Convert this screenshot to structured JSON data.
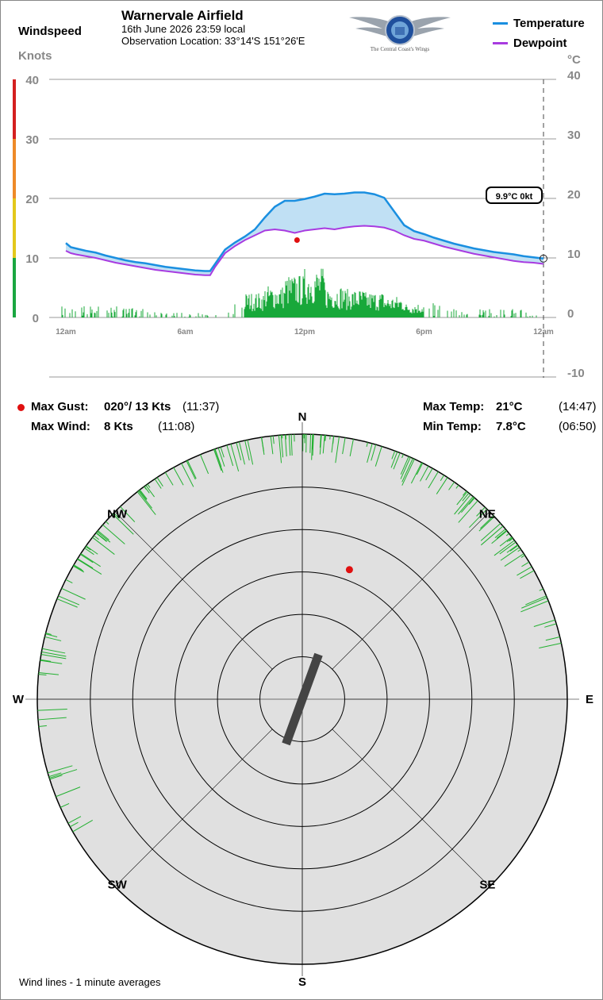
{
  "header": {
    "left_title": "Windspeed",
    "left_units": "Knots",
    "station_name": "Warnervale Airfield",
    "date_time": "16th June 2026  23:59 local",
    "location": "Observation Location: 33°14'S 151°26'E",
    "logo_text": "The Central Coast's Wings",
    "logo_ring_text": "CENTRAL COAST AERO CLUB",
    "legend": [
      {
        "label": "Temperature",
        "color": "#1a8fe0"
      },
      {
        "label": "Dewpoint",
        "color": "#a83be0"
      }
    ],
    "right_units": "°C"
  },
  "chart_data": [
    {
      "type": "line",
      "x_unit": "time of day",
      "x_ticks": [
        "12am",
        "6am",
        "12pm",
        "6pm",
        "12am"
      ],
      "x_range_hours": [
        0,
        24
      ],
      "left_axis": {
        "label": "Knots",
        "ticks": [
          0,
          10,
          20,
          30,
          40
        ],
        "range": [
          0,
          40
        ]
      },
      "right_axis": {
        "label": "°C",
        "ticks": [
          -10,
          0,
          10,
          20,
          30,
          40
        ],
        "range": [
          -10,
          40
        ]
      },
      "grid": true,
      "series": [
        {
          "name": "Temperature",
          "color": "#1a8fe0",
          "x_hours": [
            0,
            0.25,
            0.5,
            1,
            1.5,
            2,
            2.5,
            3,
            3.5,
            4,
            4.5,
            5,
            5.5,
            6,
            6.5,
            7,
            7.25,
            7.5,
            8,
            8.5,
            9,
            9.5,
            10,
            10.5,
            11,
            11.5,
            12,
            12.5,
            13,
            13.5,
            14,
            14.5,
            15,
            15.5,
            16,
            16.5,
            17,
            17.5,
            18,
            18.5,
            19,
            19.5,
            20,
            20.5,
            21,
            21.5,
            22,
            22.5,
            23,
            23.5,
            24
          ],
          "values": [
            12.5,
            11.8,
            11.6,
            11.2,
            10.9,
            10.4,
            10.0,
            9.6,
            9.3,
            9.1,
            8.8,
            8.5,
            8.3,
            8.1,
            7.9,
            7.8,
            7.8,
            9.0,
            11.4,
            12.6,
            13.6,
            14.8,
            16.8,
            18.6,
            19.6,
            19.6,
            19.9,
            20.3,
            20.8,
            20.7,
            20.8,
            21.0,
            21.0,
            20.7,
            20.1,
            17.8,
            15.5,
            14.5,
            14.0,
            13.4,
            12.9,
            12.4,
            12.0,
            11.6,
            11.3,
            11.0,
            10.8,
            10.6,
            10.3,
            10.1,
            9.9
          ]
        },
        {
          "name": "Dewpoint",
          "color": "#a83be0",
          "x_hours": [
            0,
            0.25,
            0.5,
            1,
            1.5,
            2,
            2.5,
            3,
            3.5,
            4,
            4.5,
            5,
            5.5,
            6,
            6.5,
            7,
            7.25,
            7.5,
            8,
            8.5,
            9,
            9.5,
            10,
            10.5,
            11,
            11.5,
            12,
            12.5,
            13,
            13.5,
            14,
            14.5,
            15,
            15.5,
            16,
            16.5,
            17,
            17.5,
            18,
            18.5,
            19,
            19.5,
            20,
            20.5,
            21,
            21.5,
            22,
            22.5,
            23,
            23.5,
            24
          ],
          "values": [
            11.2,
            10.8,
            10.6,
            10.3,
            10.0,
            9.6,
            9.2,
            8.9,
            8.6,
            8.3,
            8.0,
            7.8,
            7.6,
            7.4,
            7.2,
            7.1,
            7.1,
            8.5,
            10.8,
            12.0,
            13.0,
            13.8,
            14.6,
            14.8,
            14.6,
            14.2,
            14.6,
            14.8,
            15.0,
            14.8,
            15.1,
            15.3,
            15.4,
            15.3,
            15.1,
            14.6,
            13.8,
            13.2,
            12.9,
            12.4,
            11.9,
            11.5,
            11.1,
            10.7,
            10.4,
            10.1,
            9.8,
            9.5,
            9.3,
            9.2,
            9.0
          ]
        }
      ],
      "max_gust_marker": {
        "time": "11:37",
        "knots": 13
      },
      "current_reading": {
        "label": "9.9°C  0kt",
        "temp_c": 9.9,
        "wind_kt": 0
      },
      "wind_speed_hourly_envelope": [
        1,
        1,
        1,
        0.8,
        0.6,
        0.5,
        0.4,
        0.5,
        1.2,
        3.5,
        4.5,
        6,
        7,
        4.5,
        4,
        3.6,
        3,
        2,
        1.2,
        0.8,
        0.8,
        0.7,
        0.7,
        0.6
      ],
      "speed_color_bands": [
        {
          "from": 0,
          "to": 10,
          "color": "#1aa640"
        },
        {
          "from": 10,
          "to": 20,
          "color": "#e3c81b"
        },
        {
          "from": 20,
          "to": 30,
          "color": "#ee8a28"
        },
        {
          "from": 30,
          "to": 40,
          "color": "#d42020"
        }
      ]
    },
    {
      "type": "polar",
      "directions": [
        "N",
        "NE",
        "E",
        "SE",
        "S",
        "SW",
        "W",
        "NW"
      ],
      "ring_knots": [
        4,
        8,
        12,
        16,
        20
      ],
      "runway_heading_deg": 20,
      "max_gust": {
        "direction_deg": 20,
        "knots": 13
      },
      "wind_lines_caption": "Wind lines - 1 minute averages",
      "wind_line_sectors": [
        {
          "from_deg": 300,
          "to_deg": 360,
          "count": 60
        },
        {
          "from_deg": 0,
          "to_deg": 60,
          "count": 70
        },
        {
          "from_deg": 240,
          "to_deg": 300,
          "count": 26
        },
        {
          "from_deg": 60,
          "to_deg": 80,
          "count": 10
        }
      ]
    }
  ],
  "stats": {
    "max_gust_label": "Max Gust:",
    "max_gust_value": "020°/ 13 Kts",
    "max_gust_time": "(11:37)",
    "max_wind_label": "Max Wind:",
    "max_wind_value": "8 Kts",
    "max_wind_time": "(11:08)",
    "max_temp_label": "Max Temp:",
    "max_temp_value": "21°C",
    "max_temp_time": "(14:47)",
    "min_temp_label": "Min Temp:",
    "min_temp_value": "7.8°C",
    "min_temp_time": "(06:50)"
  }
}
